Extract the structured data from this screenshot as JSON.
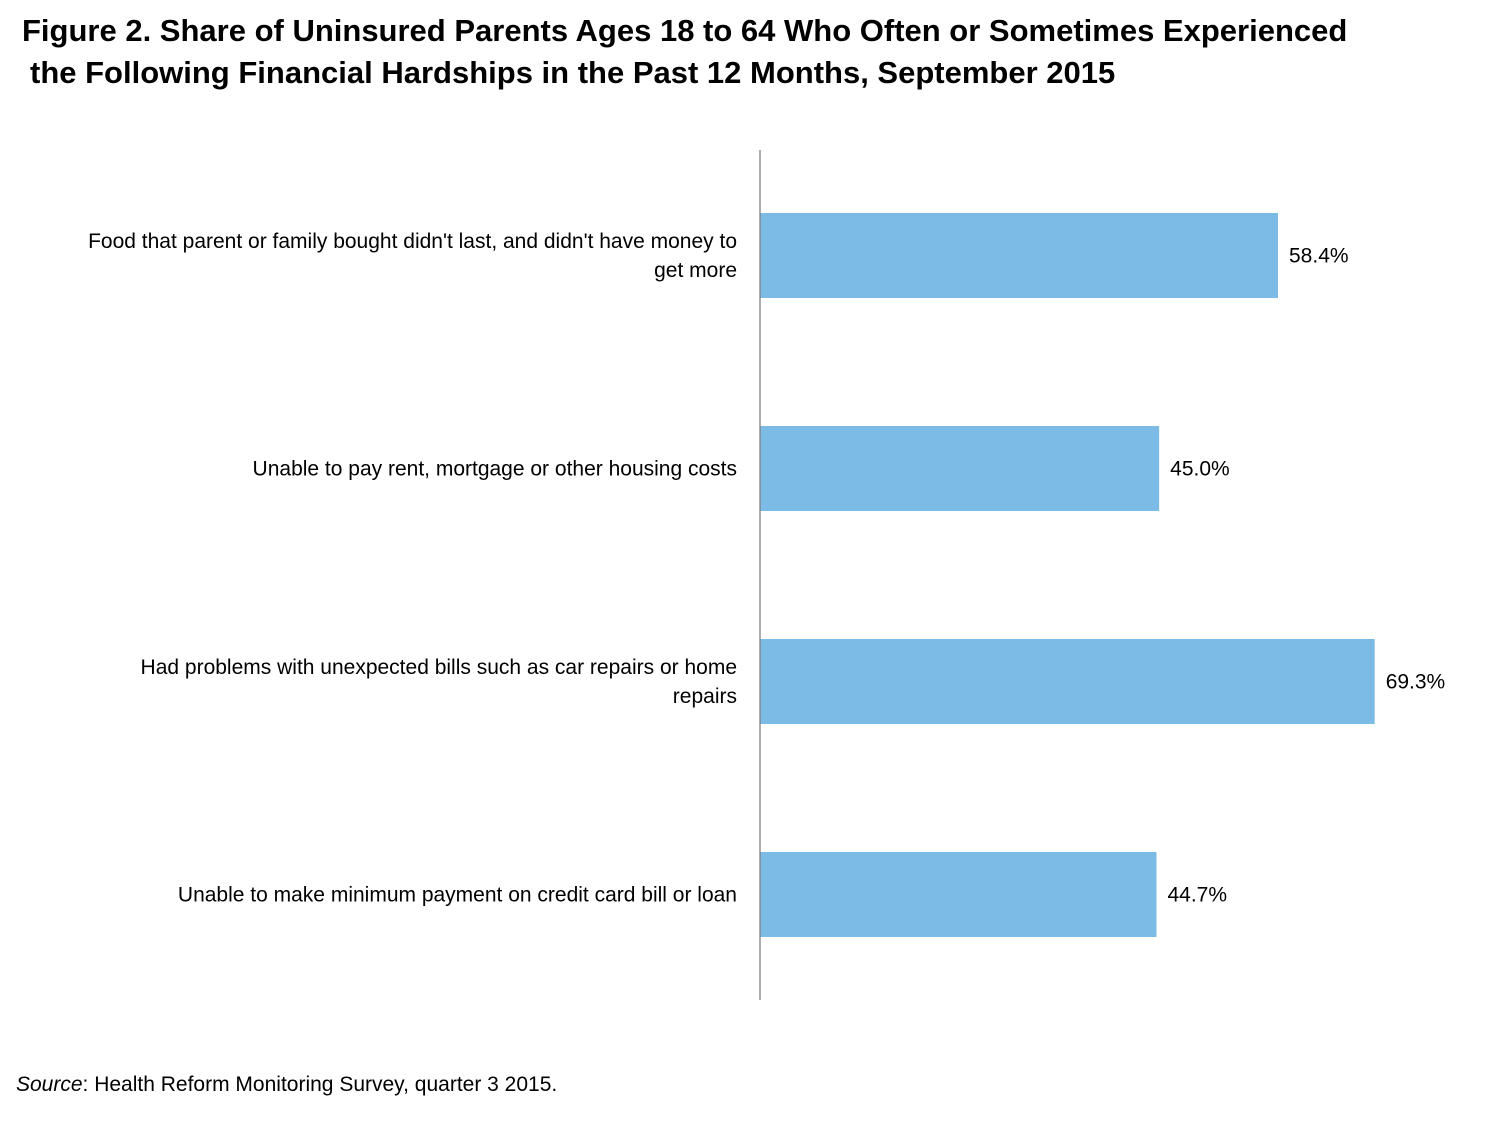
{
  "title_line1": "Figure 2. Share of Uninsured Parents Ages 18 to 64 Who Often or Sometimes Experienced",
  "title_line2": "the Following Financial Hardships in the Past 12 Months, September 2015",
  "source_label": "Source",
  "source_text": ": Health Reform Monitoring Survey, quarter 3 2015.",
  "chart_data": {
    "type": "bar",
    "orientation": "horizontal",
    "title": "Figure 2. Share of Uninsured Parents Ages 18 to 64 Who Often or Sometimes Experienced the Following Financial Hardships in the Past 12 Months, September 2015",
    "categories": [
      [
        "Food that parent or family bought didn't last, and didn't have money to",
        "get more"
      ],
      [
        "Unable to pay rent, mortgage or other housing costs"
      ],
      [
        "Had problems with unexpected bills such as car repairs or home",
        "repairs"
      ],
      [
        "Unable to make minimum payment on credit card bill or loan"
      ]
    ],
    "values": [
      58.4,
      45.0,
      69.3,
      44.7
    ],
    "value_labels": [
      "58.4%",
      "45.0%",
      "69.3%",
      "44.7%"
    ],
    "xlim": [
      0,
      100
    ],
    "bar_color": "#7BBBE5",
    "axis_color": "#7F7F7F",
    "grid": false,
    "legend": "none"
  }
}
